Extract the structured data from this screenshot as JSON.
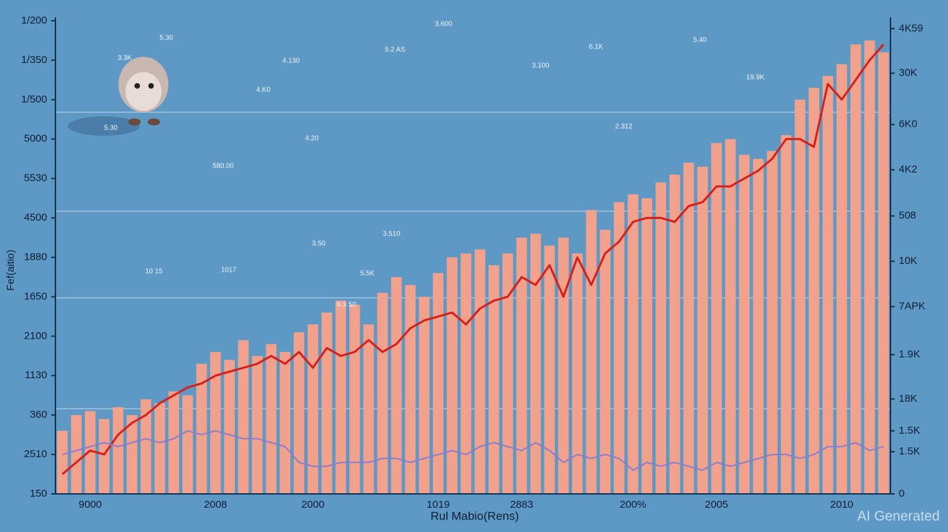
{
  "chart_data": {
    "type": "bar",
    "y_label": "Fef(aitio)",
    "x_label": "Rul Mabio(Rens)",
    "watermark": "AI Generated",
    "categories": [
      null,
      null,
      "9000",
      null,
      null,
      null,
      null,
      null,
      null,
      null,
      null,
      "2008",
      null,
      null,
      null,
      null,
      null,
      null,
      "2000",
      null,
      null,
      null,
      null,
      null,
      null,
      null,
      null,
      "1019",
      null,
      null,
      null,
      null,
      null,
      "2883",
      null,
      null,
      null,
      null,
      null,
      null,
      null,
      "200%",
      null,
      null,
      null,
      null,
      null,
      "2005",
      null,
      null,
      null,
      null,
      null,
      null,
      null,
      null,
      "2010",
      null,
      null,
      null
    ],
    "color": "#f2a18c",
    "values": [
      1.6,
      2.0,
      2.1,
      1.9,
      2.2,
      2.0,
      2.4,
      2.3,
      2.6,
      2.5,
      3.3,
      3.6,
      3.4,
      3.9,
      3.5,
      3.8,
      3.6,
      4.1,
      4.3,
      4.6,
      4.9,
      4.8,
      4.3,
      5.1,
      5.5,
      5.3,
      5.0,
      5.6,
      6.0,
      6.1,
      6.2,
      5.8,
      6.1,
      6.5,
      6.6,
      6.3,
      6.5,
      6.1,
      7.2,
      6.7,
      7.4,
      7.6,
      7.5,
      7.9,
      8.1,
      8.4,
      8.3,
      8.9,
      9.0,
      8.6,
      8.5,
      8.7,
      9.1,
      10.0,
      10.3,
      10.6,
      10.9,
      11.4,
      11.5,
      11.2
    ],
    "lines": [
      {
        "color": "#d91e18",
        "values": [
          0.5,
          0.8,
          1.1,
          1.0,
          1.5,
          1.8,
          2.0,
          2.3,
          2.5,
          2.7,
          2.8,
          3.0,
          3.1,
          3.2,
          3.3,
          3.5,
          3.3,
          3.6,
          3.2,
          3.7,
          3.5,
          3.6,
          3.9,
          3.6,
          3.8,
          4.2,
          4.4,
          4.5,
          4.6,
          4.3,
          4.7,
          4.9,
          5.0,
          5.5,
          5.3,
          5.8,
          5.0,
          6.0,
          5.3,
          6.1,
          6.4,
          6.9,
          7.0,
          7.0,
          6.9,
          7.3,
          7.4,
          7.8,
          7.8,
          8.0,
          8.2,
          8.5,
          9.0,
          9.0,
          8.8,
          10.4,
          10.0,
          10.5,
          11.0,
          11.4
        ]
      },
      {
        "color": "#8a7ccc",
        "values": [
          1.0,
          1.1,
          1.2,
          1.3,
          1.2,
          1.3,
          1.4,
          1.3,
          1.4,
          1.6,
          1.5,
          1.6,
          1.5,
          1.4,
          1.4,
          1.3,
          1.2,
          0.8,
          0.7,
          0.7,
          0.8,
          0.8,
          0.8,
          0.9,
          0.9,
          0.8,
          0.9,
          1.0,
          1.1,
          1.0,
          1.2,
          1.3,
          1.2,
          1.1,
          1.3,
          1.1,
          0.8,
          1.0,
          0.9,
          1.0,
          0.9,
          0.6,
          0.8,
          0.7,
          0.8,
          0.7,
          0.6,
          0.8,
          0.7,
          0.8,
          0.9,
          1.0,
          1.0,
          0.9,
          1.0,
          1.2,
          1.2,
          1.3,
          1.1,
          1.2
        ]
      }
    ],
    "ylim": [
      0,
      12
    ],
    "yticks": [
      {
        "value": 0,
        "label": "150"
      },
      {
        "value": 1,
        "label": "2510"
      },
      {
        "value": 2,
        "label": "360"
      },
      {
        "value": 3,
        "label": "1130"
      },
      {
        "value": 4,
        "label": "2100"
      },
      {
        "value": 5,
        "label": "1650"
      },
      {
        "value": 6,
        "label": "1880"
      },
      {
        "value": 7,
        "label": "4500"
      },
      {
        "value": 8,
        "label": "5530"
      },
      {
        "value": 9,
        "label": "5000"
      },
      {
        "value": 10,
        "label": "1/500"
      },
      {
        "value": 11,
        "label": "1/350"
      },
      {
        "value": 12,
        "label": "1/200"
      }
    ],
    "y2lim": [
      0,
      12
    ],
    "y2ticks": [
      0,
      {
        "value": 1.07,
        "label": "1.5K"
      },
      {
        "value": 1.6,
        "label": "1.5K"
      },
      {
        "value": 2.41,
        "label": "18K"
      },
      {
        "value": 3.53,
        "label": "1.9K"
      },
      {
        "value": 4.75,
        "label": "7APK"
      },
      {
        "value": 5.9,
        "label": "10K"
      },
      {
        "value": 7.05,
        "label": "508"
      },
      {
        "value": 8.22,
        "label": "4K2"
      },
      {
        "value": 9.37,
        "label": "6K0"
      },
      {
        "value": 10.67,
        "label": "30K"
      },
      {
        "value": 11.8,
        "label": "4K59"
      }
    ],
    "annotations": [
      "3.3K",
      "5.30",
      "4.130",
      "3.600",
      "5.2 AS",
      "4.20",
      "5.40",
      "5.30",
      "1017",
      "6.1K",
      "10 15",
      "19.9K",
      "5.5K",
      "3.510",
      "6.3 50",
      "3.50",
      "2.312",
      "3.100",
      "580.00",
      "4.K0"
    ]
  }
}
